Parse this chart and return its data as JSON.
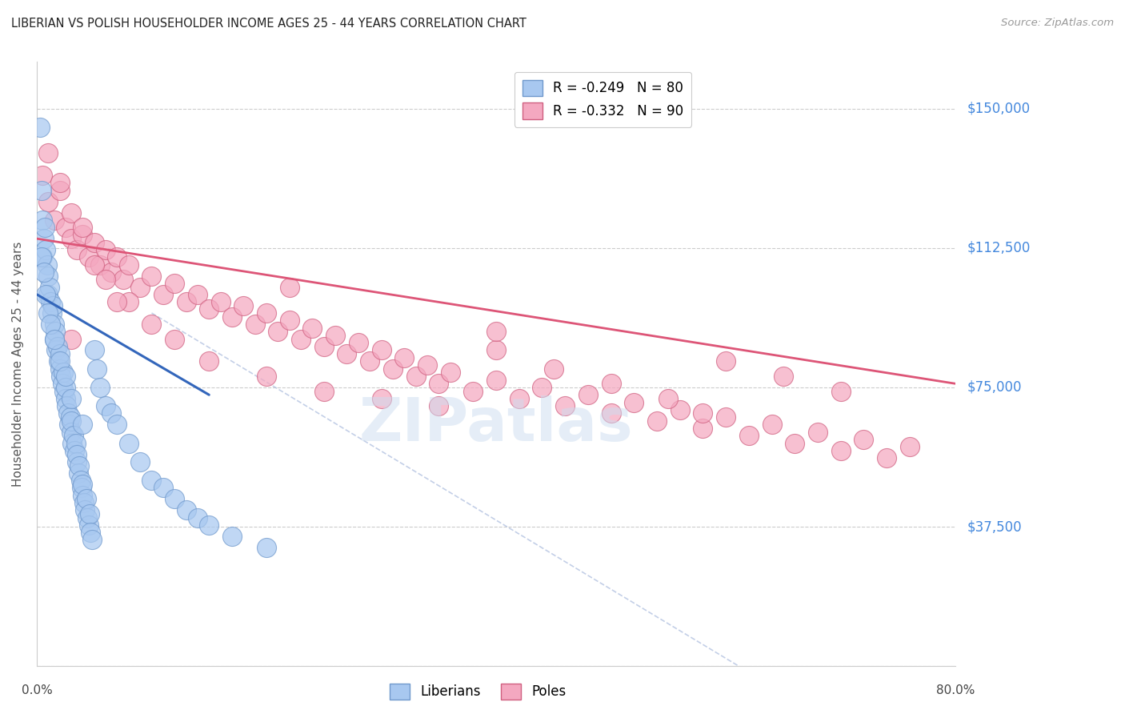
{
  "title": "LIBERIAN VS POLISH HOUSEHOLDER INCOME AGES 25 - 44 YEARS CORRELATION CHART",
  "source": "Source: ZipAtlas.com",
  "ylabel": "Householder Income Ages 25 - 44 years",
  "xmin": 0.0,
  "xmax": 80.0,
  "ymin": 0,
  "ymax": 162500,
  "yticks": [
    0,
    37500,
    75000,
    112500,
    150000
  ],
  "ytick_labels": [
    "",
    "$37,500",
    "$75,000",
    "$112,500",
    "$150,000"
  ],
  "grid_color": "#cccccc",
  "background_color": "#ffffff",
  "liberian_color": "#a8c8f0",
  "pole_color": "#f4a8c0",
  "liberian_edge": "#7099cc",
  "pole_edge": "#d06080",
  "legend_label_liberian": "R = -0.249   N = 80",
  "legend_label_pole": "R = -0.332   N = 90",
  "watermark": "ZIPatlas",
  "title_color": "#222222",
  "axis_label_color": "#555555",
  "right_label_color": "#4488dd",
  "lib_line_color": "#3366bb",
  "pole_line_color": "#dd5577",
  "dash_line_color": "#aabbdd",
  "liberian_scatter_x": [
    0.3,
    0.4,
    0.5,
    0.5,
    0.6,
    0.7,
    0.8,
    0.9,
    1.0,
    1.0,
    1.1,
    1.2,
    1.3,
    1.4,
    1.5,
    1.5,
    1.6,
    1.7,
    1.8,
    1.9,
    2.0,
    2.0,
    2.1,
    2.2,
    2.3,
    2.4,
    2.5,
    2.5,
    2.6,
    2.7,
    2.8,
    2.9,
    3.0,
    3.0,
    3.1,
    3.2,
    3.3,
    3.4,
    3.5,
    3.5,
    3.6,
    3.7,
    3.8,
    3.9,
    4.0,
    4.0,
    4.1,
    4.2,
    4.3,
    4.4,
    4.5,
    4.6,
    4.7,
    4.8,
    5.0,
    5.2,
    5.5,
    6.0,
    6.5,
    7.0,
    8.0,
    9.0,
    10.0,
    11.0,
    12.0,
    13.0,
    14.0,
    15.0,
    17.0,
    20.0,
    0.4,
    0.6,
    0.8,
    1.0,
    1.2,
    1.5,
    2.0,
    2.5,
    3.0,
    4.0
  ],
  "liberian_scatter_y": [
    145000,
    128000,
    120000,
    110000,
    115000,
    118000,
    112000,
    108000,
    105000,
    100000,
    102000,
    98000,
    95000,
    97000,
    92000,
    88000,
    90000,
    85000,
    86000,
    82000,
    80000,
    84000,
    78000,
    76000,
    79000,
    74000,
    72000,
    75000,
    70000,
    68000,
    65000,
    67000,
    63000,
    66000,
    60000,
    62000,
    58000,
    60000,
    55000,
    57000,
    52000,
    54000,
    50000,
    48000,
    46000,
    49000,
    44000,
    42000,
    45000,
    40000,
    38000,
    41000,
    36000,
    34000,
    85000,
    80000,
    75000,
    70000,
    68000,
    65000,
    60000,
    55000,
    50000,
    48000,
    45000,
    42000,
    40000,
    38000,
    35000,
    32000,
    110000,
    106000,
    100000,
    95000,
    92000,
    88000,
    82000,
    78000,
    72000,
    65000
  ],
  "pole_scatter_x": [
    0.5,
    1.0,
    1.5,
    2.0,
    2.5,
    3.0,
    3.5,
    4.0,
    4.5,
    5.0,
    5.5,
    6.0,
    6.5,
    7.0,
    7.5,
    8.0,
    9.0,
    10.0,
    11.0,
    12.0,
    13.0,
    14.0,
    15.0,
    16.0,
    17.0,
    18.0,
    19.0,
    20.0,
    21.0,
    22.0,
    23.0,
    24.0,
    25.0,
    26.0,
    27.0,
    28.0,
    29.0,
    30.0,
    31.0,
    32.0,
    33.0,
    34.0,
    35.0,
    36.0,
    38.0,
    40.0,
    42.0,
    44.0,
    46.0,
    48.0,
    50.0,
    52.0,
    54.0,
    56.0,
    58.0,
    60.0,
    62.0,
    64.0,
    66.0,
    68.0,
    70.0,
    72.0,
    74.0,
    76.0,
    1.0,
    2.0,
    3.0,
    4.0,
    5.0,
    6.0,
    8.0,
    10.0,
    12.0,
    15.0,
    20.0,
    25.0,
    30.0,
    35.0,
    40.0,
    45.0,
    50.0,
    55.0,
    60.0,
    65.0,
    70.0,
    3.0,
    7.0,
    22.0,
    40.0,
    58.0
  ],
  "pole_scatter_y": [
    132000,
    125000,
    120000,
    128000,
    118000,
    115000,
    112000,
    116000,
    110000,
    114000,
    108000,
    112000,
    106000,
    110000,
    104000,
    108000,
    102000,
    105000,
    100000,
    103000,
    98000,
    100000,
    96000,
    98000,
    94000,
    97000,
    92000,
    95000,
    90000,
    93000,
    88000,
    91000,
    86000,
    89000,
    84000,
    87000,
    82000,
    85000,
    80000,
    83000,
    78000,
    81000,
    76000,
    79000,
    74000,
    77000,
    72000,
    75000,
    70000,
    73000,
    68000,
    71000,
    66000,
    69000,
    64000,
    67000,
    62000,
    65000,
    60000,
    63000,
    58000,
    61000,
    56000,
    59000,
    138000,
    130000,
    122000,
    118000,
    108000,
    104000,
    98000,
    92000,
    88000,
    82000,
    78000,
    74000,
    72000,
    70000,
    85000,
    80000,
    76000,
    72000,
    82000,
    78000,
    74000,
    88000,
    98000,
    102000,
    90000,
    68000
  ]
}
